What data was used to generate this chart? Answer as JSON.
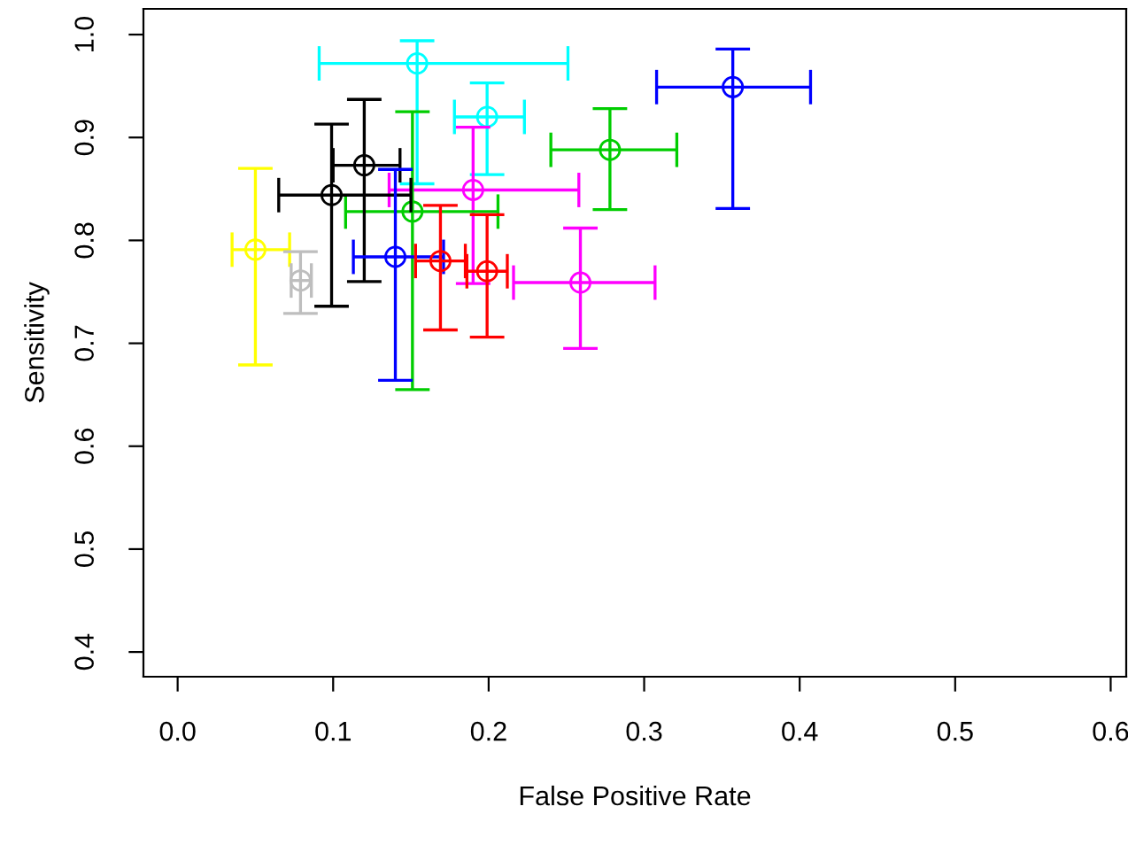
{
  "chart_data": {
    "type": "scatter",
    "xlabel": "False Positive Rate",
    "ylabel": "Sensitivity",
    "xlim": [
      -0.022,
      0.61
    ],
    "ylim": [
      0.376,
      1.025
    ],
    "xticks": [
      {
        "value": 0,
        "label": "0.0"
      },
      0.1,
      0.2,
      0.3,
      0.4,
      0.5,
      0.6
    ],
    "yticks": [
      0.4,
      0.5,
      0.6,
      0.7,
      0.8,
      0.9,
      {
        "value": 1,
        "label": "1.0"
      }
    ],
    "grid": false,
    "marker": "circle",
    "series": [
      {
        "color": "#00ffff",
        "x": [
          0.154
        ],
        "values": [
          0.972
        ],
        "xerrors": [
          [
            0.091,
            0.251
          ]
        ],
        "errors": [
          [
            0.855,
            0.994
          ]
        ]
      },
      {
        "color": "#00ffff",
        "x": [
          0.199
        ],
        "values": [
          0.92
        ],
        "xerrors": [
          [
            0.178,
            0.223
          ]
        ],
        "errors": [
          [
            0.864,
            0.953
          ]
        ]
      },
      {
        "color": "#0000ff",
        "x": [
          0.357
        ],
        "values": [
          0.949
        ],
        "xerrors": [
          [
            0.308,
            0.407
          ]
        ],
        "errors": [
          [
            0.831,
            0.986
          ]
        ]
      },
      {
        "color": "#00cd00",
        "x": [
          0.278
        ],
        "values": [
          0.888
        ],
        "xerrors": [
          [
            0.24,
            0.321
          ]
        ],
        "errors": [
          [
            0.83,
            0.928
          ]
        ]
      },
      {
        "color": "#ff00ff",
        "x": [
          0.259
        ],
        "values": [
          0.759
        ],
        "xerrors": [
          [
            0.216,
            0.307
          ]
        ],
        "errors": [
          [
            0.695,
            0.812
          ]
        ]
      },
      {
        "color": "#ff00ff",
        "x": [
          0.19
        ],
        "values": [
          0.849
        ],
        "xerrors": [
          [
            0.136,
            0.258
          ]
        ],
        "errors": [
          [
            0.758,
            0.91
          ]
        ]
      },
      {
        "color": "#00cd00",
        "x": [
          0.151
        ],
        "values": [
          0.828
        ],
        "xerrors": [
          [
            0.108,
            0.206
          ]
        ],
        "errors": [
          [
            0.655,
            0.925
          ]
        ]
      },
      {
        "color": "#000000",
        "x": [
          0.12
        ],
        "values": [
          0.873
        ],
        "xerrors": [
          [
            0.1,
            0.143
          ]
        ],
        "errors": [
          [
            0.76,
            0.937
          ]
        ]
      },
      {
        "color": "#000000",
        "x": [
          0.099
        ],
        "values": [
          0.844
        ],
        "xerrors": [
          [
            0.065,
            0.15
          ]
        ],
        "errors": [
          [
            0.736,
            0.913
          ]
        ]
      },
      {
        "color": "#0000ff",
        "x": [
          0.14
        ],
        "values": [
          0.784
        ],
        "xerrors": [
          [
            0.113,
            0.171
          ]
        ],
        "errors": [
          [
            0.664,
            0.869
          ]
        ]
      },
      {
        "color": "#ff0000",
        "x": [
          0.169
        ],
        "values": [
          0.78
        ],
        "xerrors": [
          [
            0.153,
            0.185
          ]
        ],
        "errors": [
          [
            0.713,
            0.834
          ]
        ]
      },
      {
        "color": "#ff0000",
        "x": [
          0.199
        ],
        "values": [
          0.77
        ],
        "xerrors": [
          [
            0.186,
            0.212
          ]
        ],
        "errors": [
          [
            0.706,
            0.825
          ]
        ]
      },
      {
        "color": "#ffff00",
        "x": [
          0.05
        ],
        "values": [
          0.791
        ],
        "xerrors": [
          [
            0.035,
            0.072
          ]
        ],
        "errors": [
          [
            0.679,
            0.87
          ]
        ]
      },
      {
        "color": "#bebebe",
        "x": [
          0.079
        ],
        "values": [
          0.761
        ],
        "xerrors": [
          [
            0.073,
            0.086
          ]
        ],
        "errors": [
          [
            0.729,
            0.789
          ]
        ]
      }
    ]
  }
}
